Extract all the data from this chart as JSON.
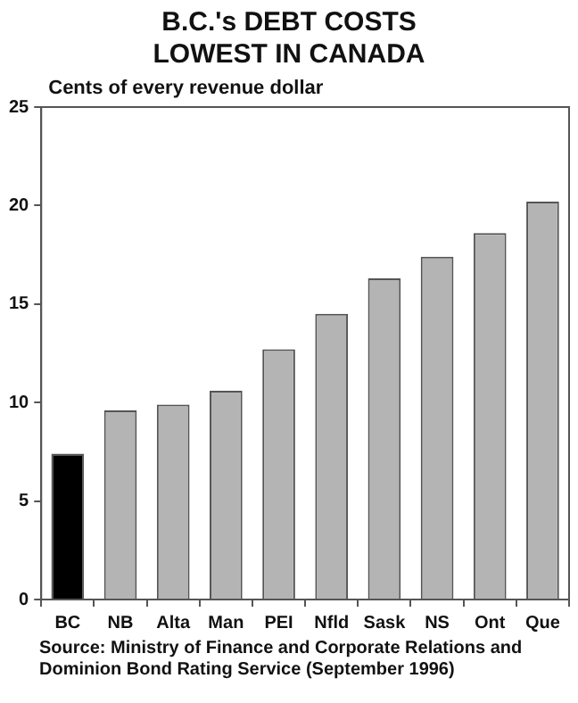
{
  "chart_data": {
    "type": "bar",
    "title": "B.C.'s DEBT COSTS\nLOWEST IN CANADA",
    "ylabel": "Cents of every revenue dollar",
    "categories": [
      "BC",
      "NB",
      "Alta",
      "Man",
      "PEI",
      "Nfld",
      "Sask",
      "NS",
      "Ont",
      "Que"
    ],
    "values": [
      7.4,
      9.6,
      9.9,
      10.6,
      12.7,
      14.5,
      16.3,
      17.4,
      18.6,
      20.2
    ],
    "colors": [
      "#000000",
      "#b4b4b4",
      "#b4b4b4",
      "#b4b4b4",
      "#b4b4b4",
      "#b4b4b4",
      "#b4b4b4",
      "#b4b4b4",
      "#b4b4b4",
      "#b4b4b4"
    ],
    "ylim": [
      0,
      25
    ],
    "yticks": [
      0,
      5,
      10,
      15,
      20,
      25
    ],
    "grid": false,
    "legend": false,
    "annotations": [
      "Source: Ministry of Finance and Corporate Relations and Dominion Bond Rating Service (September 1996)"
    ]
  }
}
